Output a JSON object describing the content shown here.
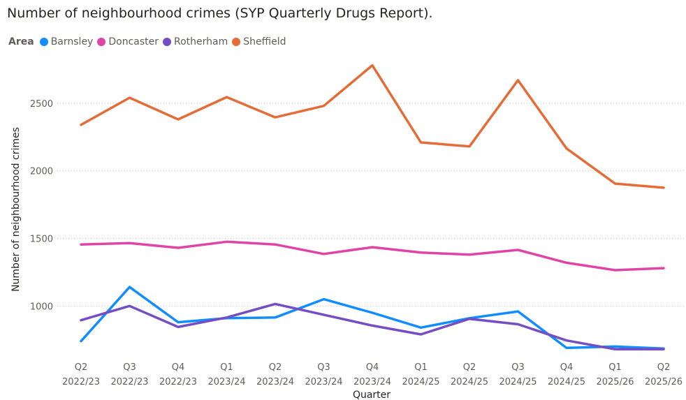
{
  "chart_data": {
    "type": "line",
    "title": "Number of neighbourhood crimes (SYP Quarterly Drugs Report).",
    "legend_title": "Area",
    "legend_position": "top-left",
    "xlabel": "Quarter",
    "ylabel": "Number of neighbourhood crimes",
    "ylim": [
      630,
      2850
    ],
    "yticks": [
      1000,
      1500,
      2000,
      2500
    ],
    "grid": true,
    "categories": [
      [
        "Q2",
        "2022/23"
      ],
      [
        "Q3",
        "2022/23"
      ],
      [
        "Q4",
        "2022/23"
      ],
      [
        "Q1",
        "2023/24"
      ],
      [
        "Q2",
        "2023/24"
      ],
      [
        "Q3",
        "2023/24"
      ],
      [
        "Q4",
        "2023/24"
      ],
      [
        "Q1",
        "2024/25"
      ],
      [
        "Q2",
        "2024/25"
      ],
      [
        "Q3",
        "2024/25"
      ],
      [
        "Q4",
        "2024/25"
      ],
      [
        "Q1",
        "2025/26"
      ],
      [
        "Q2",
        "2025/26"
      ]
    ],
    "series": [
      {
        "name": "Barnsley",
        "color": "#118DFF",
        "values": [
          740,
          1140,
          880,
          910,
          915,
          1050,
          950,
          840,
          910,
          960,
          690,
          700,
          685
        ]
      },
      {
        "name": "Doncaster",
        "color": "#E044A7",
        "values": [
          1455,
          1465,
          1430,
          1475,
          1455,
          1385,
          1435,
          1395,
          1380,
          1415,
          1320,
          1265,
          1280
        ]
      },
      {
        "name": "Rotherham",
        "color": "#744EC2",
        "values": [
          895,
          1000,
          845,
          915,
          1015,
          935,
          855,
          790,
          905,
          865,
          745,
          680,
          680
        ]
      },
      {
        "name": "Sheffield",
        "color": "#E66C37",
        "values": [
          2340,
          2540,
          2380,
          2545,
          2395,
          2480,
          2780,
          2210,
          2180,
          2670,
          2165,
          1905,
          1875
        ]
      }
    ]
  }
}
